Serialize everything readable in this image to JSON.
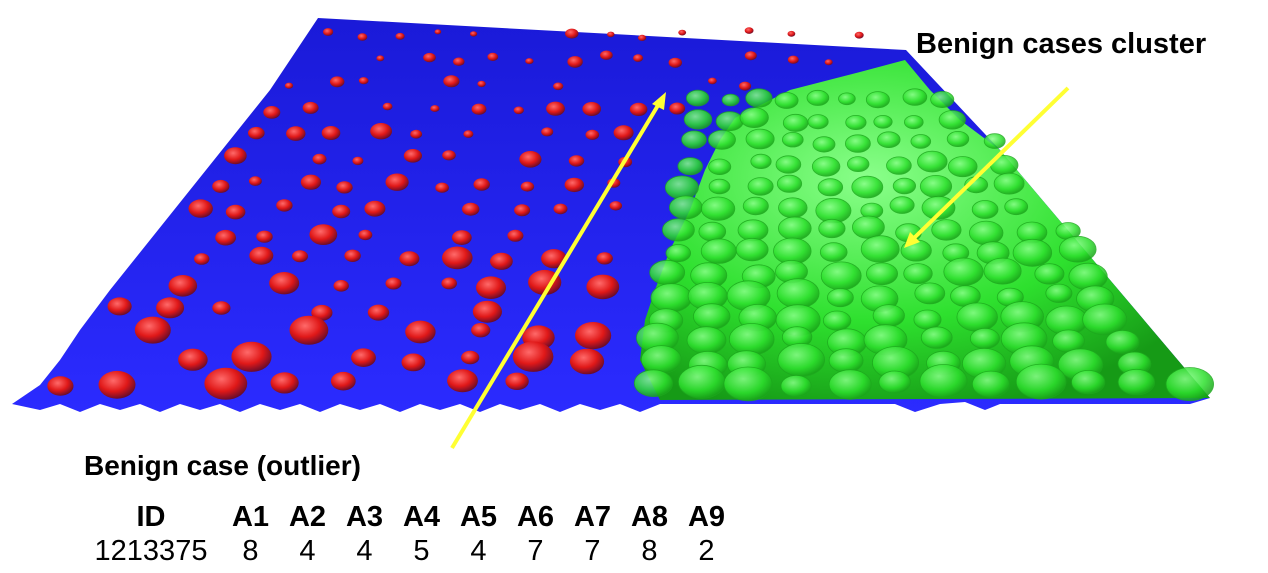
{
  "labels": {
    "cluster": "Benign cases cluster",
    "outlier": "Benign case (outlier)"
  },
  "table": {
    "headers": [
      "ID",
      "A1",
      "A2",
      "A3",
      "A4",
      "A5",
      "A6",
      "A7",
      "A8",
      "A9"
    ],
    "row": [
      "1213375",
      "8",
      "4",
      "4",
      "5",
      "4",
      "7",
      "7",
      "8",
      "2"
    ]
  },
  "colors": {
    "surface": "#2323ff",
    "malignant_bump": "#e82020",
    "benign_region": "#2ee82e",
    "arrow": "#ffff33"
  }
}
